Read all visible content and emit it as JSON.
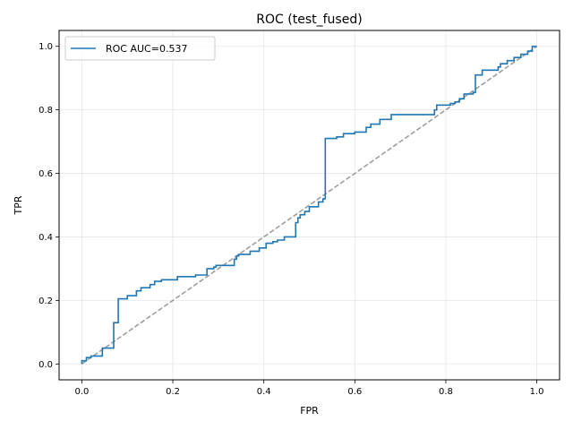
{
  "chart_data": {
    "type": "line",
    "title": "ROC (test_fused)",
    "xlabel": "FPR",
    "ylabel": "TPR",
    "xlim": [
      -0.05,
      1.05
    ],
    "ylim": [
      -0.05,
      1.05
    ],
    "xticks": [
      0.0,
      0.2,
      0.4,
      0.6,
      0.8,
      1.0
    ],
    "yticks": [
      0.0,
      0.2,
      0.4,
      0.6,
      0.8,
      1.0
    ],
    "xtick_labels": [
      "0.0",
      "0.2",
      "0.4",
      "0.6",
      "0.8",
      "1.0"
    ],
    "ytick_labels": [
      "0.0",
      "0.2",
      "0.4",
      "0.6",
      "0.8",
      "1.0"
    ],
    "grid": true,
    "legend_position": "upper-left",
    "series": [
      {
        "name": "ROC AUC=0.537",
        "color": "#1f77b4",
        "style": "step",
        "x": [
          0.0,
          0.0,
          0.01,
          0.01,
          0.02,
          0.02,
          0.045,
          0.045,
          0.07,
          0.07,
          0.08,
          0.08,
          0.1,
          0.1,
          0.12,
          0.12,
          0.13,
          0.13,
          0.15,
          0.15,
          0.16,
          0.16,
          0.175,
          0.175,
          0.21,
          0.21,
          0.25,
          0.25,
          0.275,
          0.275,
          0.29,
          0.29,
          0.295,
          0.295,
          0.335,
          0.335,
          0.34,
          0.34,
          0.345,
          0.345,
          0.37,
          0.37,
          0.39,
          0.39,
          0.405,
          0.405,
          0.42,
          0.42,
          0.43,
          0.43,
          0.445,
          0.445,
          0.47,
          0.47,
          0.475,
          0.475,
          0.48,
          0.48,
          0.49,
          0.49,
          0.5,
          0.5,
          0.52,
          0.52,
          0.53,
          0.53,
          0.535,
          0.535,
          0.56,
          0.56,
          0.575,
          0.575,
          0.6,
          0.6,
          0.625,
          0.625,
          0.635,
          0.635,
          0.655,
          0.655,
          0.68,
          0.68,
          0.775,
          0.775,
          0.78,
          0.78,
          0.81,
          0.81,
          0.82,
          0.82,
          0.83,
          0.83,
          0.84,
          0.84,
          0.86,
          0.86,
          0.865,
          0.865,
          0.88,
          0.88,
          0.915,
          0.915,
          0.92,
          0.92,
          0.935,
          0.935,
          0.95,
          0.95,
          0.965,
          0.965,
          0.98,
          0.98,
          0.99,
          0.99,
          1.0
        ],
        "y": [
          0.0,
          0.01,
          0.01,
          0.02,
          0.02,
          0.025,
          0.025,
          0.05,
          0.05,
          0.13,
          0.13,
          0.205,
          0.205,
          0.215,
          0.215,
          0.23,
          0.23,
          0.24,
          0.24,
          0.25,
          0.25,
          0.26,
          0.26,
          0.265,
          0.265,
          0.275,
          0.275,
          0.28,
          0.28,
          0.3,
          0.3,
          0.305,
          0.305,
          0.31,
          0.31,
          0.33,
          0.33,
          0.34,
          0.34,
          0.345,
          0.345,
          0.355,
          0.355,
          0.365,
          0.365,
          0.38,
          0.38,
          0.385,
          0.385,
          0.39,
          0.39,
          0.4,
          0.4,
          0.445,
          0.445,
          0.46,
          0.46,
          0.47,
          0.47,
          0.48,
          0.48,
          0.495,
          0.495,
          0.51,
          0.51,
          0.52,
          0.52,
          0.71,
          0.71,
          0.715,
          0.715,
          0.725,
          0.725,
          0.73,
          0.73,
          0.745,
          0.745,
          0.755,
          0.755,
          0.77,
          0.77,
          0.785,
          0.785,
          0.8,
          0.8,
          0.815,
          0.815,
          0.82,
          0.82,
          0.825,
          0.825,
          0.835,
          0.835,
          0.85,
          0.85,
          0.855,
          0.855,
          0.91,
          0.91,
          0.925,
          0.925,
          0.935,
          0.935,
          0.945,
          0.945,
          0.955,
          0.955,
          0.965,
          0.965,
          0.975,
          0.975,
          0.985,
          0.985,
          1.0,
          1.0
        ]
      },
      {
        "name": "",
        "color": "#999999",
        "style": "dashed",
        "x": [
          0.0,
          1.0
        ],
        "y": [
          0.0,
          1.0
        ]
      }
    ]
  }
}
